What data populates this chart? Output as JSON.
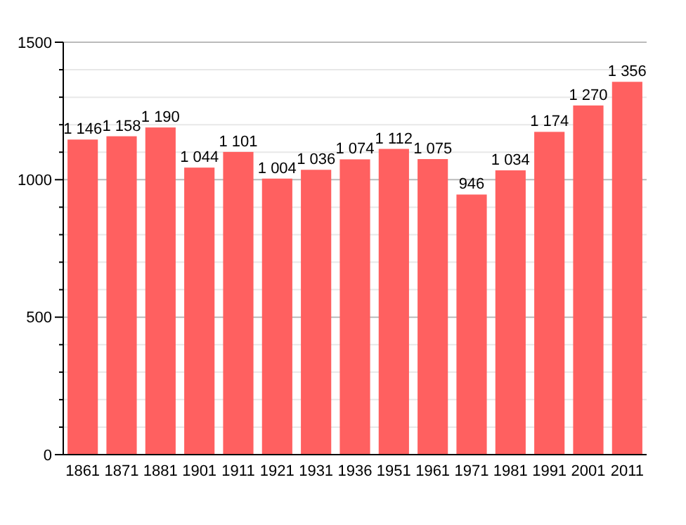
{
  "chart_data": {
    "type": "bar",
    "categories": [
      "1861",
      "1871",
      "1881",
      "1901",
      "1911",
      "1921",
      "1931",
      "1936",
      "1951",
      "1961",
      "1971",
      "1981",
      "1991",
      "2001",
      "2011"
    ],
    "values": [
      1146,
      1158,
      1190,
      1044,
      1101,
      1004,
      1036,
      1074,
      1112,
      1075,
      946,
      1034,
      1174,
      1270,
      1356
    ],
    "value_labels": [
      "1 146",
      "1 158",
      "1 190",
      "1 044",
      "1 101",
      "1 004",
      "1 036",
      "1 074",
      "1 112",
      "1 075",
      "946",
      "1 034",
      "1 174",
      "1 270",
      "1 356"
    ],
    "color": "#ff6060",
    "ylim": [
      0,
      1500
    ],
    "yticks": [
      0,
      {
        "value": 100,
        "label": null
      },
      {
        "value": 200,
        "label": null
      },
      {
        "value": 300,
        "label": null
      },
      {
        "value": 400,
        "label": null
      },
      500,
      {
        "value": 600,
        "label": null
      },
      {
        "value": 700,
        "label": null
      },
      {
        "value": 800,
        "label": null
      },
      {
        "value": 900,
        "label": null
      },
      1000,
      {
        "value": 1100,
        "label": null
      },
      {
        "value": 1200,
        "label": null
      },
      {
        "value": 1300,
        "label": null
      },
      {
        "value": 1400,
        "label": null
      },
      1500
    ],
    "grid": true
  }
}
